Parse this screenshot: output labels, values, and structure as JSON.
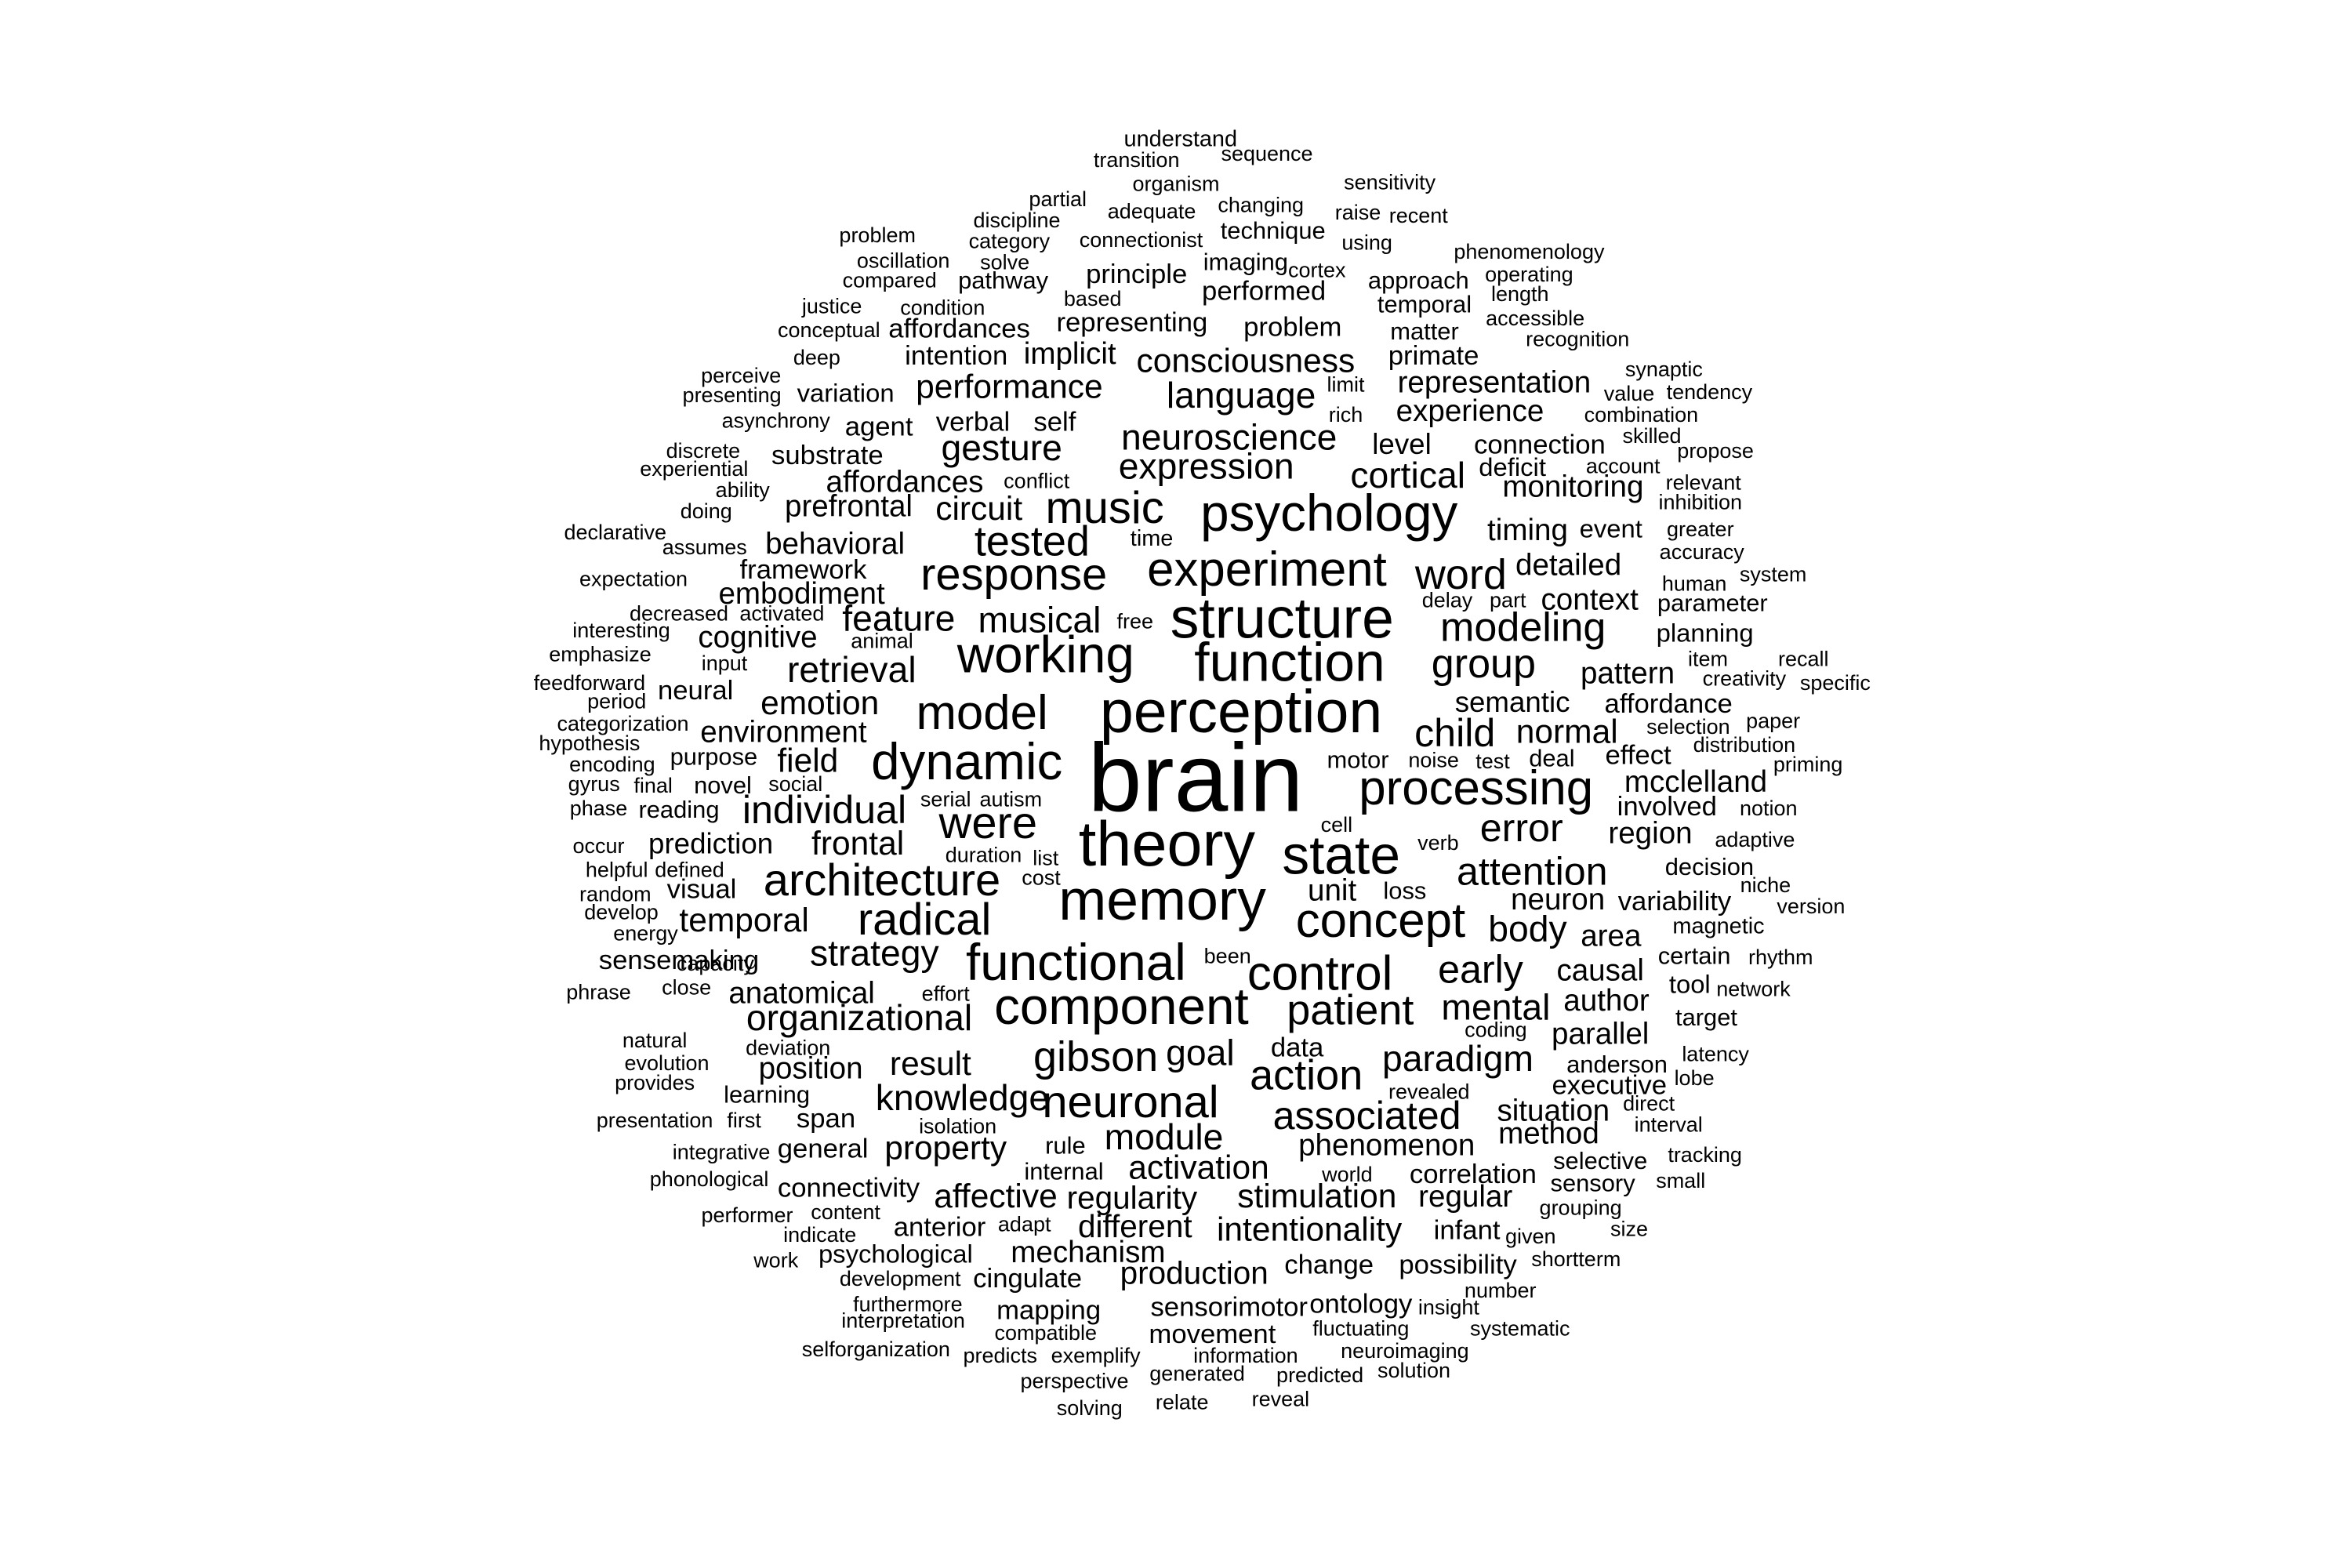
{
  "cloud": {
    "text_color": "#000000",
    "background": "#ffffff",
    "words": [
      "understand",
      "transition",
      "sequence",
      "organism",
      "sensitivity",
      "partial",
      "adequate",
      "changing",
      "discipline",
      "raise",
      "recent",
      "problem",
      "category",
      "connectionist",
      "technique",
      "using",
      "phenomenology",
      "oscillation",
      "solve",
      "imaging",
      "cortex",
      "compared",
      "pathway",
      "principle",
      "approach",
      "operating",
      "justice",
      "based",
      "performed",
      "length",
      "condition",
      "temporal",
      "accessible",
      "conceptual",
      "affordances",
      "representing",
      "problem",
      "matter",
      "recognition",
      "deep",
      "intention",
      "implicit",
      "primate",
      "consciousness",
      "perceive",
      "synaptic",
      "presenting",
      "variation",
      "performance",
      "representation",
      "limit",
      "value",
      "tendency",
      "language",
      "asynchrony",
      "agent",
      "verbal",
      "self",
      "rich",
      "experience",
      "combination",
      "skilled",
      "discrete",
      "gesture",
      "neuroscience",
      "level",
      "connection",
      "propose",
      "experiential",
      "substrate",
      "conflict",
      "deficit",
      "account",
      "cortical",
      "expression",
      "relevant",
      "ability",
      "affordances",
      "inhibition",
      "doing",
      "prefrontal",
      "circuit",
      "monitoring",
      "music",
      "psychology",
      "declarative",
      "event",
      "greater",
      "assumes",
      "behavioral",
      "tested",
      "time",
      "timing",
      "accuracy",
      "framework",
      "system",
      "expectation",
      "experiment",
      "word",
      "human",
      "embodiment",
      "response",
      "detailed",
      "decreased",
      "activated",
      "delay",
      "part",
      "context",
      "parameter",
      "interesting",
      "cognitive",
      "animal",
      "feature",
      "musical",
      "free",
      "structure",
      "modeling",
      "planning",
      "emphasize",
      "input",
      "retrieval",
      "group",
      "item",
      "recall",
      "feedforward",
      "neural",
      "working",
      "function",
      "pattern",
      "creativity",
      "specific",
      "period",
      "emotion",
      "semantic",
      "affordance",
      "categorization",
      "environment",
      "child",
      "normal",
      "selection",
      "paper",
      "hypothesis",
      "model",
      "perception",
      "distribution",
      "encoding",
      "purpose",
      "field",
      "motor",
      "deal",
      "effect",
      "priming",
      "gyrus",
      "final",
      "novel",
      "social",
      "dynamic",
      "brain",
      "processing",
      "mcclelland",
      "phase",
      "reading",
      "serial",
      "autism",
      "noise",
      "test",
      "involved",
      "notion",
      "individual",
      "were",
      "cell",
      "occur",
      "prediction",
      "frontal",
      "error",
      "region",
      "adaptive",
      "theory",
      "verb",
      "helpful",
      "defined",
      "duration",
      "list",
      "state",
      "attention",
      "decision",
      "random",
      "visual",
      "architecture",
      "cost",
      "niche",
      "develop",
      "temporal",
      "unit",
      "loss",
      "neuron",
      "variability",
      "version",
      "energy",
      "radical",
      "memory",
      "body",
      "area",
      "magnetic",
      "sensemaking",
      "strategy",
      "concept",
      "certain",
      "rhythm",
      "phrase",
      "close",
      "been",
      "causal",
      "capacity",
      "effort",
      "functional",
      "control",
      "early",
      "tool",
      "network",
      "anatomical",
      "author",
      "natural",
      "organizational",
      "mental",
      "target",
      "component",
      "coding",
      "deviation",
      "patient",
      "parallel",
      "evolution",
      "data",
      "latency",
      "provides",
      "position",
      "result",
      "goal",
      "gibson",
      "paradigm",
      "anderson",
      "lobe",
      "learning",
      "action",
      "revealed",
      "executive",
      "presentation",
      "first",
      "span",
      "knowledge",
      "neuronal",
      "direct",
      "isolation",
      "situation",
      "interval",
      "integrative",
      "general",
      "module",
      "associated",
      "method",
      "property",
      "rule",
      "phenomenon",
      "tracking",
      "phonological",
      "internal",
      "activation",
      "world",
      "correlation",
      "selective",
      "small",
      "connectivity",
      "affective",
      "regularity",
      "stimulation",
      "regular",
      "sensory",
      "performer",
      "content",
      "grouping",
      "indicate",
      "adapt",
      "anterior",
      "different",
      "intentionality",
      "infant",
      "given",
      "size",
      "work",
      "psychological",
      "mechanism",
      "possibility",
      "shortterm",
      "development",
      "cingulate",
      "production",
      "change",
      "number",
      "furthermore",
      "mapping",
      "sensorimotor",
      "ontology",
      "insight",
      "interpretation",
      "compatible",
      "movement",
      "fluctuating",
      "systematic",
      "selforganization",
      "predicts",
      "exemplify",
      "information",
      "neuroimaging",
      "perspective",
      "generated",
      "predicted",
      "solution",
      "solving",
      "relate",
      "reveal"
    ]
  }
}
